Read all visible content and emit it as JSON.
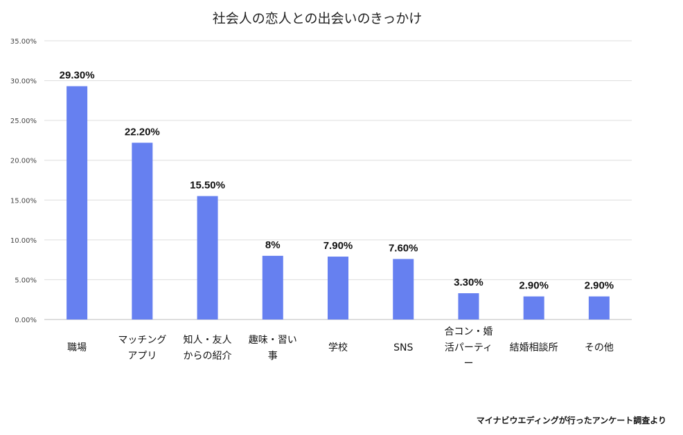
{
  "chart_data": {
    "type": "bar",
    "title": "社会人の恋人との出会いのきっかけ",
    "categories": [
      [
        "職場"
      ],
      [
        "マッチング",
        "アプリ"
      ],
      [
        "知人・友人",
        "からの紹介"
      ],
      [
        "趣味・習い",
        "事"
      ],
      [
        "学校"
      ],
      [
        "SNS"
      ],
      [
        "合コン・婚",
        "活パーティ",
        "ー"
      ],
      [
        "結婚相談所"
      ],
      [
        "その他"
      ]
    ],
    "values": [
      29.3,
      22.2,
      15.5,
      8,
      7.9,
      7.6,
      3.3,
      2.9,
      2.9
    ],
    "value_labels": [
      "29.30%",
      "22.20%",
      "15.50%",
      "8%",
      "7.90%",
      "7.60%",
      "3.30%",
      "2.90%",
      "2.90%"
    ],
    "ylim": [
      0,
      35
    ],
    "yticks": [
      "0.00%",
      "5.00%",
      "10.00%",
      "15.00%",
      "20.00%",
      "25.00%",
      "30.00%",
      "35.00%"
    ],
    "grid": true,
    "bar_color": "#6680f0"
  },
  "source_note": "マイナビウエディングが行ったアンケート調査より"
}
